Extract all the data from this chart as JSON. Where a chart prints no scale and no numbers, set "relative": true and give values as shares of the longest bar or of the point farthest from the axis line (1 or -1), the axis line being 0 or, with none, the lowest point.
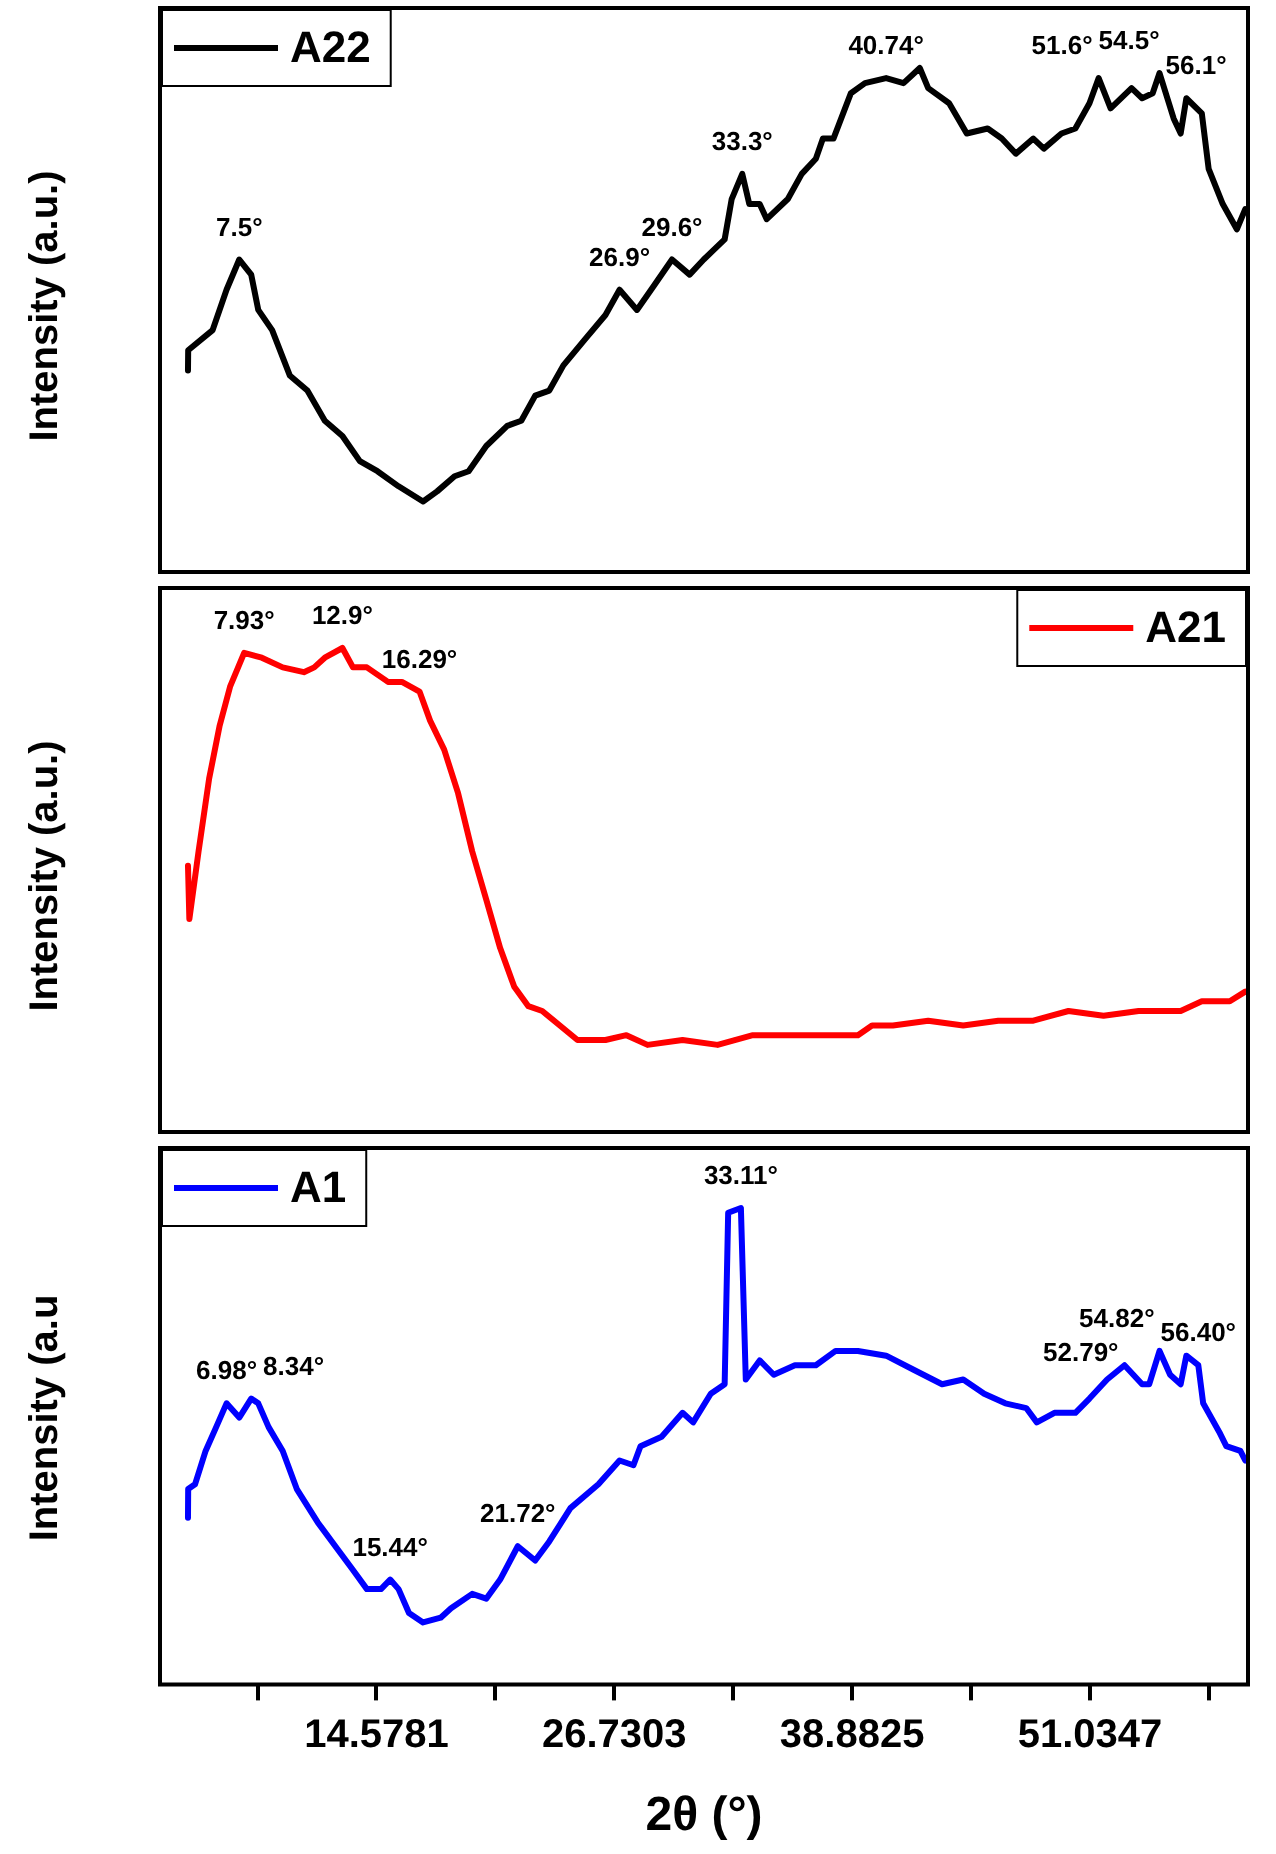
{
  "chart_data": [
    {
      "type": "line",
      "relative": true,
      "ylabel": "Intensity (a.u.)",
      "xlim": [
        3.52,
        59.11
      ],
      "tick_labels": false,
      "legend": "top left",
      "marker": "none",
      "x": [
        4.95,
        4.96,
        6.21,
        6.92,
        7.57,
        8.18,
        8.54,
        9.25,
        10.15,
        11.05,
        11.94,
        12.84,
        13.73,
        14.63,
        15.71,
        16.96,
        17.68,
        18.57,
        19.29,
        20.19,
        21.26,
        21.98,
        22.69,
        23.41,
        24.13,
        25.2,
        26.28,
        27.0,
        27.89,
        28.79,
        29.68,
        30.58,
        31.3,
        32.37,
        32.73,
        33.27,
        33.63,
        34.16,
        34.52,
        35.6,
        36.31,
        37.03,
        37.39,
        37.93,
        38.82,
        39.54,
        40.62,
        41.51,
        42.34,
        42.77,
        43.84,
        44.74,
        45.81,
        46.53,
        47.25,
        48.14,
        48.68,
        49.58,
        50.29,
        51.01,
        51.48,
        52.09,
        53.16,
        53.7,
        54.24,
        54.59,
        55.31,
        55.67,
        55.96,
        56.75,
        57.1,
        57.82,
        58.54,
        58.97
      ],
      "series": [
        {
          "name": "A22",
          "color": "#000000",
          "values": [
            0.4,
            0.44,
            0.48,
            0.56,
            0.62,
            0.59,
            0.52,
            0.48,
            0.39,
            0.36,
            0.3,
            0.27,
            0.22,
            0.2,
            0.17,
            0.14,
            0.16,
            0.19,
            0.2,
            0.25,
            0.29,
            0.3,
            0.35,
            0.36,
            0.41,
            0.46,
            0.51,
            0.56,
            0.52,
            0.57,
            0.62,
            0.59,
            0.62,
            0.66,
            0.74,
            0.79,
            0.73,
            0.73,
            0.7,
            0.74,
            0.79,
            0.82,
            0.86,
            0.86,
            0.95,
            0.97,
            0.98,
            0.97,
            1,
            0.96,
            0.93,
            0.87,
            0.88,
            0.86,
            0.83,
            0.86,
            0.84,
            0.87,
            0.88,
            0.93,
            0.98,
            0.92,
            0.96,
            0.94,
            0.95,
            0.99,
            0.9,
            0.87,
            0.94,
            0.91,
            0.8,
            0.73,
            0.68,
            0.72
          ]
        }
      ],
      "annotations": [
        {
          "text": "7.5°",
          "x": 7.57,
          "y": 0.62
        },
        {
          "text": "26.9°",
          "x": 27.0,
          "y": 0.56
        },
        {
          "text": "29.6°",
          "x": 29.68,
          "y": 0.62
        },
        {
          "text": "33.3°",
          "x": 33.27,
          "y": 0.79
        },
        {
          "text": "40.74°",
          "x": 40.62,
          "y": 0.98
        },
        {
          "text": "51.6°",
          "x": 51.48,
          "y": 0.98
        },
        {
          "text": "54.5°",
          "x": 54.59,
          "y": 0.99
        },
        {
          "text": "56.1°",
          "x": 55.96,
          "y": 0.94
        }
      ]
    },
    {
      "type": "line",
      "relative": true,
      "ylabel": "Intensity (a.u.)",
      "xlim": [
        3.52,
        59.11
      ],
      "tick_labels": false,
      "legend": "top right",
      "marker": "none",
      "x": [
        4.95,
        5.02,
        5.49,
        6.03,
        6.57,
        7.1,
        7.82,
        8.72,
        9.79,
        10.87,
        11.4,
        11.94,
        12.84,
        13.38,
        14.09,
        15.17,
        15.88,
        16.78,
        17.32,
        18.04,
        18.75,
        19.47,
        20.19,
        20.9,
        21.62,
        22.34,
        23.05,
        23.95,
        24.85,
        26.28,
        27.35,
        28.43,
        30.22,
        32.01,
        33.81,
        35.6,
        37.39,
        39.18,
        39.9,
        40.97,
        42.77,
        44.56,
        46.35,
        48.14,
        49.94,
        51.73,
        53.52,
        55.67,
        56.75,
        58.18,
        58.97
      ],
      "series": [
        {
          "name": "A21",
          "color": "#ff0000",
          "values": [
            0.55,
            0.44,
            0.58,
            0.73,
            0.84,
            0.92,
            0.99,
            0.98,
            0.96,
            0.95,
            0.96,
            0.98,
            1,
            0.96,
            0.96,
            0.93,
            0.93,
            0.91,
            0.85,
            0.79,
            0.7,
            0.58,
            0.48,
            0.38,
            0.3,
            0.26,
            0.25,
            0.22,
            0.19,
            0.19,
            0.2,
            0.18,
            0.19,
            0.18,
            0.2,
            0.2,
            0.2,
            0.2,
            0.22,
            0.22,
            0.23,
            0.22,
            0.23,
            0.23,
            0.25,
            0.24,
            0.25,
            0.25,
            0.27,
            0.27,
            0.29
          ]
        }
      ],
      "annotations": [
        {
          "text": "7.93°",
          "x": 7.82,
          "y": 0.99
        },
        {
          "text": "12.9°",
          "x": 12.84,
          "y": 1
        },
        {
          "text": "16.29°",
          "x": 16.78,
          "y": 0.91
        }
      ]
    },
    {
      "type": "line",
      "relative": true,
      "ylabel": "Intensity (a.u",
      "xlabel": "2θ (°)",
      "xlim": [
        3.52,
        59.11
      ],
      "tick_labels": "x",
      "legend": "top left",
      "marker": "none",
      "xticks": [
        {
          "value": 8.502,
          "label": null
        },
        14.5781,
        {
          "value": 20.6542,
          "label": null
        },
        26.7303,
        {
          "value": 32.8064,
          "label": null
        },
        38.8825,
        {
          "value": 44.9586,
          "label": null
        },
        51.0347,
        {
          "value": 57.1108,
          "label": null
        }
      ],
      "x": [
        4.95,
        4.96,
        5.31,
        5.85,
        6.39,
        6.92,
        7.57,
        8.18,
        8.54,
        9.07,
        9.79,
        10.51,
        11.58,
        12.66,
        13.38,
        14.09,
        14.81,
        15.28,
        15.71,
        16.24,
        16.96,
        17.86,
        18.39,
        19.47,
        20.19,
        20.9,
        21.8,
        22.69,
        23.41,
        24.49,
        25.92,
        27.0,
        27.71,
        28.07,
        29.15,
        30.22,
        30.76,
        31.66,
        32.37,
        32.55,
        33.2,
        33.45,
        34.16,
        34.88,
        35.96,
        37.03,
        38.04,
        39.18,
        40.62,
        42.05,
        43.48,
        44.56,
        45.63,
        46.71,
        47.78,
        48.32,
        49.22,
        50.29,
        51.01,
        51.91,
        52.8,
        53.7,
        54.06,
        54.59,
        55.13,
        55.67,
        55.96,
        56.57,
        56.82,
        57.64,
        58.0,
        58.72,
        58.97
      ],
      "series": [
        {
          "name": "A1",
          "color": "#0000ff",
          "values": [
            0.35,
            0.41,
            0.42,
            0.49,
            0.54,
            0.59,
            0.56,
            0.6,
            0.59,
            0.54,
            0.49,
            0.41,
            0.34,
            0.28,
            0.24,
            0.2,
            0.2,
            0.22,
            0.2,
            0.15,
            0.13,
            0.14,
            0.16,
            0.19,
            0.18,
            0.22,
            0.29,
            0.26,
            0.3,
            0.37,
            0.42,
            0.47,
            0.46,
            0.5,
            0.52,
            0.57,
            0.55,
            0.61,
            0.63,
            0.99,
            1,
            0.64,
            0.68,
            0.65,
            0.67,
            0.67,
            0.7,
            0.7,
            0.69,
            0.66,
            0.63,
            0.64,
            0.61,
            0.59,
            0.58,
            0.55,
            0.57,
            0.57,
            0.6,
            0.64,
            0.67,
            0.63,
            0.63,
            0.7,
            0.65,
            0.63,
            0.69,
            0.67,
            0.59,
            0.53,
            0.5,
            0.49,
            0.47
          ]
        }
      ],
      "annotations": [
        {
          "text": "6.98°",
          "x": 6.92,
          "y": 0.59
        },
        {
          "text": "8.34°",
          "x": 8.18,
          "y": 0.6
        },
        {
          "text": "15.44°",
          "x": 15.28,
          "y": 0.22
        },
        {
          "text": "21.72°",
          "x": 21.8,
          "y": 0.29
        },
        {
          "text": "33.11°",
          "x": 33.2,
          "y": 1
        },
        {
          "text": "52.79°",
          "x": 52.8,
          "y": 0.67
        },
        {
          "text": "54.82°",
          "x": 54.59,
          "y": 0.7
        },
        {
          "text": "56.40°",
          "x": 56.57,
          "y": 0.67
        }
      ]
    }
  ]
}
